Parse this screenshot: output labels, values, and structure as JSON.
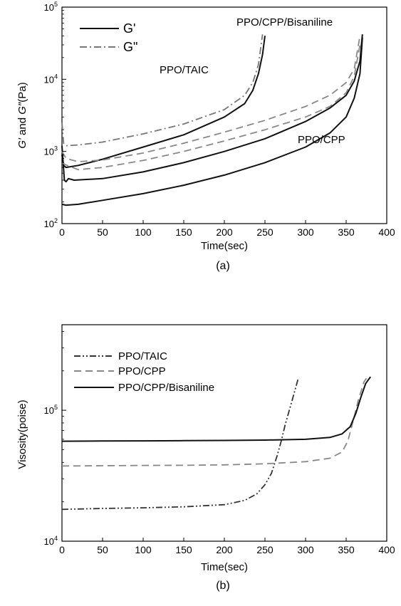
{
  "chart_data": [
    {
      "type": "line",
      "panel_label": "(a)",
      "xlabel": "Time(sec)",
      "ylabel": "G′ and G″(Pa)",
      "ylabel_parts": {
        "g1": "G′",
        "and": " and ",
        "g2": "G″",
        "unit": "(Pa)"
      },
      "xlim": [
        0,
        400
      ],
      "ylim": [
        100,
        100000
      ],
      "yscale": "log",
      "x_ticks": [
        "0",
        "50",
        "100",
        "150",
        "200",
        "250",
        "300",
        "350",
        "400"
      ],
      "y_ticks": [
        {
          "base": "10",
          "exp": "2"
        },
        {
          "base": "10",
          "exp": "3"
        },
        {
          "base": "10",
          "exp": "4"
        },
        {
          "base": "10",
          "exp": "5"
        }
      ],
      "legend": [
        {
          "label": "G'",
          "style": "solid"
        },
        {
          "label": "G\"",
          "style": "dashdot"
        }
      ],
      "annotations": [
        "PPO/TAIC",
        "PPO/CPP/Bisaniline",
        "PPO/CPP"
      ],
      "series": [
        {
          "label": "PPO/TAIC",
          "modulus": "G'",
          "style": "solid",
          "color": "#111111",
          "x": [
            0,
            2,
            5,
            20,
            50,
            100,
            150,
            200,
            225,
            235,
            242,
            247,
            250
          ],
          "y": [
            900,
            640,
            600,
            640,
            780,
            1150,
            1700,
            3000,
            4600,
            7000,
            12000,
            22000,
            40000
          ]
        },
        {
          "label": "PPO/TAIC",
          "modulus": "G\"",
          "style": "dashdot",
          "color": "#777777",
          "x": [
            0,
            2,
            5,
            20,
            50,
            100,
            150,
            200,
            225,
            235,
            242,
            247
          ],
          "y": [
            2500,
            1300,
            1200,
            1230,
            1350,
            1750,
            2400,
            3800,
            6000,
            9000,
            16000,
            42000
          ]
        },
        {
          "label": "PPO/CPP/Bisaniline",
          "modulus": "G'",
          "style": "solid",
          "color": "#111111",
          "x": [
            0,
            3,
            5,
            8,
            15,
            50,
            100,
            150,
            200,
            250,
            300,
            330,
            350,
            360,
            367,
            370
          ],
          "y": [
            1200,
            400,
            380,
            420,
            400,
            420,
            520,
            700,
            1000,
            1500,
            2600,
            4000,
            6000,
            9500,
            18000,
            42000
          ]
        },
        {
          "label": "PPO/CPP/Bisaniline",
          "modulus": "G\"",
          "style": "dashed",
          "color": "#888888",
          "x": [
            0,
            5,
            20,
            50,
            100,
            150,
            200,
            250,
            300,
            330,
            350,
            360,
            367
          ],
          "y": [
            1000,
            800,
            720,
            760,
            950,
            1300,
            1850,
            2700,
            4200,
            6000,
            9000,
            14000,
            40000
          ]
        },
        {
          "label": "PPO/CPP",
          "modulus": "G'",
          "style": "solid",
          "color": "#111111",
          "x": [
            0,
            5,
            20,
            50,
            100,
            150,
            200,
            250,
            300,
            330,
            350,
            360,
            367,
            370
          ],
          "y": [
            185,
            180,
            185,
            210,
            260,
            340,
            470,
            700,
            1150,
            1800,
            3000,
            5500,
            12000,
            38000
          ]
        },
        {
          "label": "PPO/CPP",
          "modulus": "G\"",
          "style": "dashed",
          "color": "#888888",
          "x": [
            0,
            5,
            20,
            50,
            100,
            150,
            200,
            250,
            300,
            330,
            350,
            360,
            367
          ],
          "y": [
            700,
            650,
            560,
            600,
            750,
            1000,
            1400,
            2000,
            3000,
            4200,
            6500,
            11000,
            30000
          ]
        }
      ]
    },
    {
      "type": "line",
      "panel_label": "(b)",
      "xlabel": "Time(sec)",
      "ylabel": "Visosity(poise)",
      "xlim": [
        0,
        400
      ],
      "ylim": [
        10000,
        450000
      ],
      "yscale": "log",
      "x_ticks": [
        "0",
        "50",
        "100",
        "150",
        "200",
        "250",
        "300",
        "350",
        "400"
      ],
      "y_ticks": [
        {
          "base": "10",
          "exp": "4"
        },
        {
          "base": "10",
          "exp": "5"
        }
      ],
      "legend": [
        {
          "label": "PPO/TAIC",
          "style": "dashdotdot"
        },
        {
          "label": "PPO/CPP",
          "style": "dashed"
        },
        {
          "label": "PPO/CPP/Bisaniline",
          "style": "solid"
        }
      ],
      "series": [
        {
          "label": "PPO/TAIC",
          "style": "dashdotdot",
          "color": "#333333",
          "x": [
            0,
            50,
            100,
            150,
            200,
            225,
            240,
            250,
            258,
            265,
            270,
            275,
            280,
            286,
            291
          ],
          "y": [
            17500,
            17800,
            18000,
            18300,
            19000,
            20500,
            23000,
            27000,
            33000,
            45000,
            58000,
            78000,
            100000,
            135000,
            175000
          ]
        },
        {
          "label": "PPO/CPP",
          "style": "dashed",
          "color": "#888888",
          "x": [
            0,
            50,
            100,
            150,
            200,
            250,
            300,
            330,
            345,
            352,
            358,
            365,
            372,
            375
          ],
          "y": [
            37500,
            37700,
            37900,
            38000,
            38300,
            39000,
            40500,
            43000,
            48000,
            58000,
            80000,
            120000,
            165000,
            175000
          ]
        },
        {
          "label": "PPO/CPP/Bisaniline",
          "style": "solid",
          "color": "#111111",
          "x": [
            0,
            50,
            100,
            150,
            200,
            250,
            300,
            330,
            345,
            355,
            362,
            368,
            374,
            380
          ],
          "y": [
            58000,
            58200,
            58400,
            58600,
            58800,
            59200,
            60000,
            62000,
            66000,
            75000,
            95000,
            125000,
            160000,
            180000
          ]
        }
      ]
    }
  ]
}
